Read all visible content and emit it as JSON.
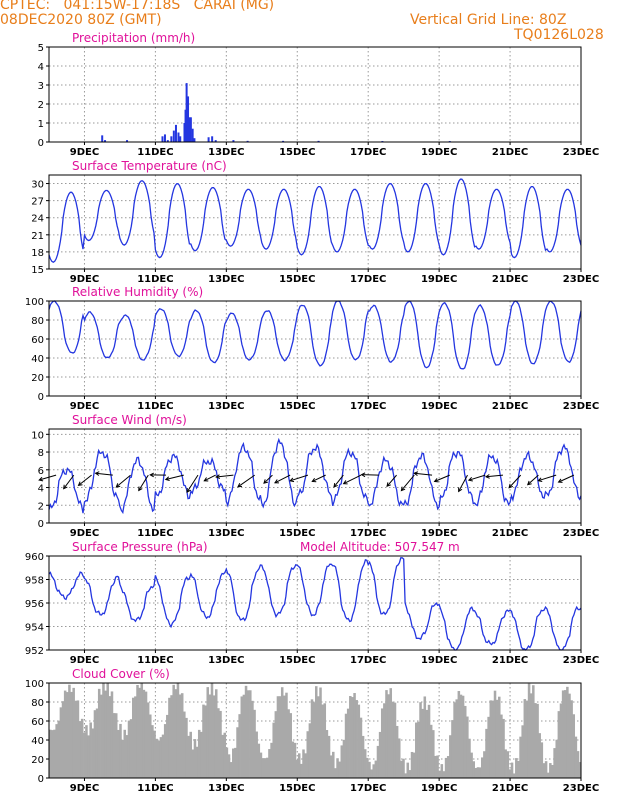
{
  "header": {
    "line1": "CPTEC:   041:15W-17:18S   CARAI (MG)",
    "line2": "08DEC2020 80Z (GMT)",
    "grid_note": "Vertical Grid Line: 80Z",
    "code": "TQ0126L028"
  },
  "colors": {
    "header": "#e87e1b",
    "title": "#e0119a",
    "series": "#2436e0",
    "bars": "#a9a9a9",
    "axes": "#000000"
  },
  "chart_data": [
    {
      "type": "bar",
      "title": "Precipitation  (mm/h)",
      "x_tick_labels": [
        "9DEC",
        "11DEC",
        "13DEC",
        "15DEC",
        "17DEC",
        "19DEC",
        "21DEC",
        "23DEC"
      ],
      "ylim": [
        0,
        5
      ],
      "y_ticks": [
        0,
        1,
        2,
        3,
        4,
        5
      ],
      "x_range_days": [
        0,
        15.0
      ],
      "points": [
        [
          1.5,
          0.35
        ],
        [
          1.58,
          0.1
        ],
        [
          2.2,
          0.1
        ],
        [
          3.2,
          0.3
        ],
        [
          3.27,
          0.4
        ],
        [
          3.35,
          0.1
        ],
        [
          3.45,
          0.3
        ],
        [
          3.52,
          0.6
        ],
        [
          3.58,
          0.9
        ],
        [
          3.65,
          0.5
        ],
        [
          3.7,
          0.3
        ],
        [
          3.82,
          1.0
        ],
        [
          3.85,
          1.7
        ],
        [
          3.88,
          3.1
        ],
        [
          3.92,
          2.4
        ],
        [
          3.96,
          1.3
        ],
        [
          4.0,
          1.3
        ],
        [
          4.05,
          0.7
        ],
        [
          4.1,
          0.2
        ],
        [
          4.5,
          0.25
        ],
        [
          4.6,
          0.3
        ],
        [
          4.7,
          0.1
        ],
        [
          5.2,
          0.1
        ],
        [
          5.6,
          0.06
        ],
        [
          6.6,
          0.06
        ],
        [
          7.6,
          0.06
        ],
        [
          9.4,
          0.05
        ],
        [
          11.3,
          0.05
        ]
      ],
      "grid": true
    },
    {
      "type": "line",
      "title": "Surface Temperature  (nC)",
      "x_tick_labels": [
        "9DEC",
        "11DEC",
        "13DEC",
        "15DEC",
        "17DEC",
        "19DEC",
        "21DEC",
        "23DEC"
      ],
      "ylim": [
        15,
        31.5
      ],
      "y_ticks": [
        15,
        18,
        21,
        24,
        27,
        30
      ],
      "daily": {
        "min": [
          16.2,
          20.0,
          19.2,
          17.0,
          18.2,
          19.0,
          18.5,
          17.5,
          18.0,
          18.5,
          18.0,
          17.5,
          18.5,
          17.0,
          18.0
        ],
        "max": [
          28.5,
          28.8,
          30.5,
          30.0,
          29.3,
          29.0,
          29.0,
          29.5,
          29.0,
          30.0,
          30.0,
          30.8,
          29.0,
          29.5,
          29.0
        ]
      },
      "grid": true
    },
    {
      "type": "line",
      "title": "Relative Humidity  (%)",
      "x_tick_labels": [
        "9DEC",
        "11DEC",
        "13DEC",
        "15DEC",
        "17DEC",
        "19DEC",
        "21DEC",
        "23DEC"
      ],
      "ylim": [
        0,
        100
      ],
      "y_ticks": [
        0,
        20,
        40,
        60,
        80,
        100
      ],
      "daily": {
        "min": [
          45,
          40,
          38,
          42,
          35,
          38,
          38,
          32,
          38,
          36,
          30,
          28,
          32,
          34,
          36
        ],
        "max": [
          100,
          88,
          85,
          92,
          90,
          87,
          90,
          96,
          100,
          95,
          100,
          98,
          95,
          100,
          100
        ]
      },
      "grid": true
    },
    {
      "type": "line",
      "title": "Surface Wind  (m/s)",
      "x_tick_labels": [
        "9DEC",
        "11DEC",
        "13DEC",
        "15DEC",
        "17DEC",
        "19DEC",
        "21DEC",
        "23DEC"
      ],
      "ylim": [
        0,
        10.6
      ],
      "y_ticks": [
        0,
        2,
        4,
        6,
        8,
        10
      ],
      "daily": {
        "min": [
          1.5,
          2.5,
          1.5,
          3.0,
          3.5,
          2.5,
          2.0,
          3.0,
          2.5,
          2.0,
          2.0,
          2.5,
          2.0,
          3.0,
          3.0
        ],
        "max": [
          6.0,
          8.0,
          7.0,
          7.5,
          7.0,
          8.5,
          9.0,
          8.5,
          8.0,
          7.0,
          7.5,
          8.0,
          7.5,
          7.5,
          8.5
        ]
      },
      "vector_days": [
        0.2,
        0.7,
        1.2,
        1.8,
        2.3,
        2.8,
        3.3,
        3.8,
        4.2,
        4.7,
        5.2,
        5.8,
        6.3,
        6.8,
        7.3,
        7.8,
        8.3,
        8.8,
        9.3,
        9.8,
        10.3,
        10.8,
        11.3,
        11.8,
        12.3,
        12.8,
        13.3,
        13.8,
        14.3,
        14.8
      ],
      "grid": true
    },
    {
      "type": "line",
      "title": "Surface Pressure  (hPa)",
      "annotation": "Model Altitude:  507.547  m",
      "x_tick_labels": [
        "9DEC",
        "11DEC",
        "13DEC",
        "15DEC",
        "17DEC",
        "19DEC",
        "21DEC",
        "23DEC"
      ],
      "ylim": [
        952,
        960
      ],
      "y_ticks": [
        952,
        954,
        956,
        958,
        960
      ],
      "daily": {
        "min": [
          956.5,
          955.0,
          954.5,
          954.2,
          954.8,
          954.5,
          955.0,
          955.0,
          954.5,
          955.0,
          953.0,
          952.0,
          952.5,
          952.0,
          952.0
        ],
        "max": [
          958.5,
          958.2,
          957.5,
          958.2,
          958.5,
          959.0,
          959.2,
          959.3,
          959.5,
          959.8,
          956.0,
          955.5,
          955.3,
          955.5,
          955.6
        ]
      },
      "grid": true
    },
    {
      "type": "bar",
      "title": "Cloud Cover  (%)",
      "x_tick_labels": [
        "9DEC",
        "11DEC",
        "13DEC",
        "15DEC",
        "17DEC",
        "19DEC",
        "21DEC",
        "23DEC"
      ],
      "ylim": [
        0,
        100
      ],
      "y_ticks": [
        0,
        20,
        40,
        60,
        80,
        100
      ],
      "daily": {
        "min": [
          50,
          50,
          45,
          40,
          35,
          20,
          20,
          20,
          15,
          10,
          10,
          10,
          10,
          10,
          10
        ],
        "max": [
          95,
          98,
          98,
          97,
          95,
          95,
          92,
          92,
          88,
          92,
          80,
          90,
          88,
          95,
          95
        ]
      },
      "grid": true
    }
  ]
}
